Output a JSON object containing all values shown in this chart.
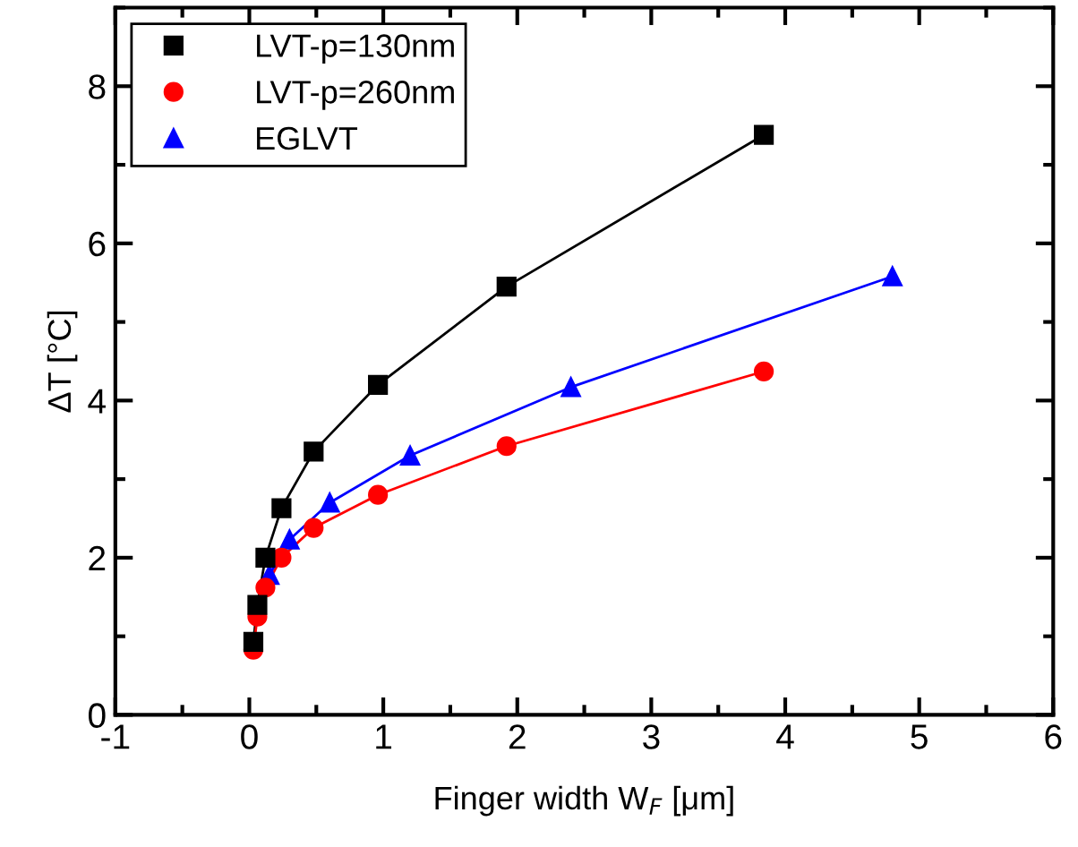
{
  "chart_data": {
    "type": "line",
    "xlabel": "Finger width W$_{F}$ [μm]",
    "ylabel": "ΔT [°C]",
    "xlim": [
      -1,
      6
    ],
    "xticks": [
      -1,
      0,
      1,
      2,
      3,
      4,
      5,
      6
    ],
    "ylim": [
      0,
      9
    ],
    "yticks": [
      0,
      2,
      4,
      6,
      8
    ],
    "grid": false,
    "legend": "top left",
    "series": [
      {
        "name": "LVT-p=130nm",
        "color": "#000000",
        "marker": "square",
        "x": [
          0.03,
          0.06,
          0.12,
          0.24,
          0.48,
          0.96,
          1.92,
          3.84
        ],
        "values": [
          0.93,
          1.4,
          2.0,
          2.63,
          3.35,
          4.2,
          5.45,
          7.38
        ]
      },
      {
        "name": "LVT-p=260nm",
        "color": "#ff0000",
        "marker": "circle",
        "x": [
          0.03,
          0.06,
          0.12,
          0.24,
          0.48,
          0.96,
          1.92,
          3.84
        ],
        "values": [
          0.83,
          1.25,
          1.62,
          2.0,
          2.38,
          2.8,
          3.42,
          4.37
        ]
      },
      {
        "name": "EGLVT",
        "color": "#0000ff",
        "marker": "triangle",
        "x": [
          0.15,
          0.3,
          0.6,
          1.2,
          2.4,
          4.8
        ],
        "values": [
          1.78,
          2.23,
          2.7,
          3.3,
          4.17,
          5.58
        ]
      }
    ]
  }
}
